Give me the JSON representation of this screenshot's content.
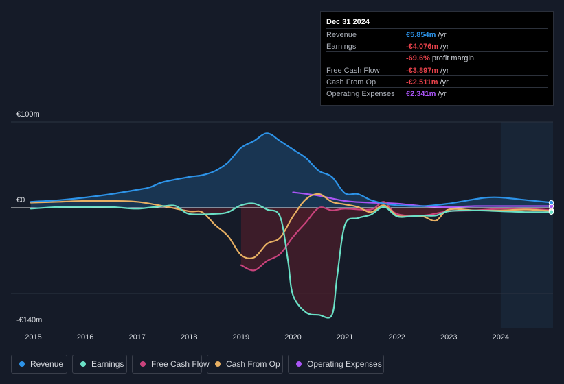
{
  "tooltip": {
    "date": "Dec 31 2024",
    "rows": [
      {
        "label": "Revenue",
        "value": "€5.854m",
        "unit": " /yr",
        "color": "#2d93e8"
      },
      {
        "label": "Earnings",
        "value": "-€4.076m",
        "unit": " /yr",
        "color": "#e8424b"
      },
      {
        "label": "",
        "value": "-69.6%",
        "unit": " profit margin",
        "color": "#e8424b"
      },
      {
        "label": "Free Cash Flow",
        "value": "-€3.897m",
        "unit": " /yr",
        "color": "#e8424b"
      },
      {
        "label": "Cash From Op",
        "value": "-€2.511m",
        "unit": " /yr",
        "color": "#e8424b"
      },
      {
        "label": "Operating Expenses",
        "value": "€2.341m",
        "unit": " /yr",
        "color": "#a955f5"
      }
    ]
  },
  "legend": [
    {
      "label": "Revenue",
      "color": "#2d93e8"
    },
    {
      "label": "Earnings",
      "color": "#6ae0c6"
    },
    {
      "label": "Free Cash Flow",
      "color": "#c9437c"
    },
    {
      "label": "Cash From Op",
      "color": "#e8b063"
    },
    {
      "label": "Operating Expenses",
      "color": "#a955f5"
    }
  ],
  "chart_data": {
    "type": "line",
    "title": "",
    "xlabel": "",
    "ylabel": "",
    "y_labels": [
      "€100m",
      "€0",
      "-€140m"
    ],
    "ylim": [
      -140,
      100
    ],
    "xlim": [
      2014.95,
      2025.0
    ],
    "x_ticks": [
      2015,
      2016,
      2017,
      2018,
      2019,
      2020,
      2021,
      2022,
      2023,
      2024
    ],
    "x_tick_labels": [
      "2015",
      "2016",
      "2017",
      "2018",
      "2019",
      "2020",
      "2021",
      "2022",
      "2023",
      "2024"
    ],
    "forecast_start": 2024.0,
    "series": [
      {
        "name": "Revenue",
        "color": "#2d93e8",
        "fill": "#1a3a59",
        "points": [
          [
            2014.95,
            7
          ],
          [
            2015.5,
            9
          ],
          [
            2016.0,
            12
          ],
          [
            2016.5,
            16
          ],
          [
            2017.0,
            21
          ],
          [
            2017.25,
            24
          ],
          [
            2017.5,
            30
          ],
          [
            2018.0,
            36
          ],
          [
            2018.25,
            38
          ],
          [
            2018.5,
            43
          ],
          [
            2018.75,
            53
          ],
          [
            2019.0,
            70
          ],
          [
            2019.25,
            78
          ],
          [
            2019.5,
            87
          ],
          [
            2019.75,
            78
          ],
          [
            2020.0,
            68
          ],
          [
            2020.25,
            58
          ],
          [
            2020.5,
            43
          ],
          [
            2020.75,
            36
          ],
          [
            2021.0,
            17
          ],
          [
            2021.25,
            16
          ],
          [
            2021.5,
            9
          ],
          [
            2021.75,
            5
          ],
          [
            2022.0,
            3
          ],
          [
            2022.5,
            2
          ],
          [
            2023.0,
            5
          ],
          [
            2023.5,
            10
          ],
          [
            2023.75,
            12
          ],
          [
            2024.0,
            12
          ],
          [
            2024.5,
            9
          ],
          [
            2025.0,
            6
          ]
        ]
      },
      {
        "name": "Earnings",
        "color": "#6ae0c6",
        "fill": "#4a1e2a",
        "points": [
          [
            2014.95,
            -1
          ],
          [
            2015.5,
            1
          ],
          [
            2016.0,
            1
          ],
          [
            2016.5,
            1
          ],
          [
            2017.0,
            -1
          ],
          [
            2017.5,
            2
          ],
          [
            2017.75,
            2
          ],
          [
            2018.0,
            -7
          ],
          [
            2018.5,
            -7
          ],
          [
            2018.75,
            -5
          ],
          [
            2019.0,
            3
          ],
          [
            2019.25,
            5
          ],
          [
            2019.5,
            -2
          ],
          [
            2019.75,
            -10
          ],
          [
            2019.9,
            -60
          ],
          [
            2020.0,
            -102
          ],
          [
            2020.25,
            -122
          ],
          [
            2020.5,
            -125
          ],
          [
            2020.75,
            -125
          ],
          [
            2020.85,
            -80
          ],
          [
            2021.0,
            -20
          ],
          [
            2021.25,
            -12
          ],
          [
            2021.5,
            -8
          ],
          [
            2021.75,
            1
          ],
          [
            2022.0,
            -10
          ],
          [
            2022.25,
            -10
          ],
          [
            2022.5,
            -9
          ],
          [
            2022.75,
            -9
          ],
          [
            2023.0,
            -4
          ],
          [
            2023.5,
            -3
          ],
          [
            2024.0,
            -4
          ],
          [
            2024.5,
            -5
          ],
          [
            2025.0,
            -5
          ]
        ]
      },
      {
        "name": "Free Cash Flow",
        "color": "#c9437c",
        "fill": "#4a1e2a",
        "points": [
          [
            2019.0,
            -67
          ],
          [
            2019.25,
            -73
          ],
          [
            2019.5,
            -62
          ],
          [
            2019.75,
            -54
          ],
          [
            2020.0,
            -34
          ],
          [
            2020.25,
            -17
          ],
          [
            2020.5,
            0
          ],
          [
            2020.75,
            -3
          ],
          [
            2021.0,
            -1
          ],
          [
            2021.5,
            -2
          ],
          [
            2021.75,
            7
          ],
          [
            2022.0,
            -7
          ],
          [
            2022.5,
            -9
          ],
          [
            2023.0,
            -4
          ],
          [
            2023.5,
            -3
          ],
          [
            2024.0,
            -1
          ],
          [
            2024.5,
            -1
          ],
          [
            2025.0,
            -3
          ]
        ]
      },
      {
        "name": "Cash From Op",
        "color": "#e8b063",
        "points": [
          [
            2014.95,
            6
          ],
          [
            2015.5,
            7
          ],
          [
            2016.0,
            8
          ],
          [
            2016.5,
            8
          ],
          [
            2017.0,
            7
          ],
          [
            2017.5,
            2
          ],
          [
            2018.0,
            -4
          ],
          [
            2018.25,
            -5
          ],
          [
            2018.5,
            -20
          ],
          [
            2018.75,
            -33
          ],
          [
            2019.0,
            -55
          ],
          [
            2019.25,
            -58
          ],
          [
            2019.5,
            -42
          ],
          [
            2019.75,
            -35
          ],
          [
            2020.0,
            -10
          ],
          [
            2020.25,
            10
          ],
          [
            2020.5,
            16
          ],
          [
            2020.75,
            7
          ],
          [
            2021.0,
            4
          ],
          [
            2021.25,
            1
          ],
          [
            2021.5,
            -5
          ],
          [
            2021.75,
            3
          ],
          [
            2022.0,
            -9
          ],
          [
            2022.25,
            -10
          ],
          [
            2022.5,
            -10
          ],
          [
            2022.75,
            -15
          ],
          [
            2023.0,
            -2
          ],
          [
            2023.5,
            -3
          ],
          [
            2024.0,
            -3
          ],
          [
            2024.5,
            -2
          ],
          [
            2025.0,
            -4
          ]
        ]
      },
      {
        "name": "Operating Expenses",
        "color": "#a955f5",
        "points": [
          [
            2020.0,
            18
          ],
          [
            2020.5,
            14
          ],
          [
            2021.0,
            8
          ],
          [
            2021.5,
            6
          ],
          [
            2022.0,
            5
          ],
          [
            2022.5,
            2
          ],
          [
            2023.0,
            1
          ],
          [
            2023.5,
            2
          ],
          [
            2024.0,
            2
          ],
          [
            2024.5,
            2
          ],
          [
            2025.0,
            2
          ]
        ]
      }
    ]
  }
}
